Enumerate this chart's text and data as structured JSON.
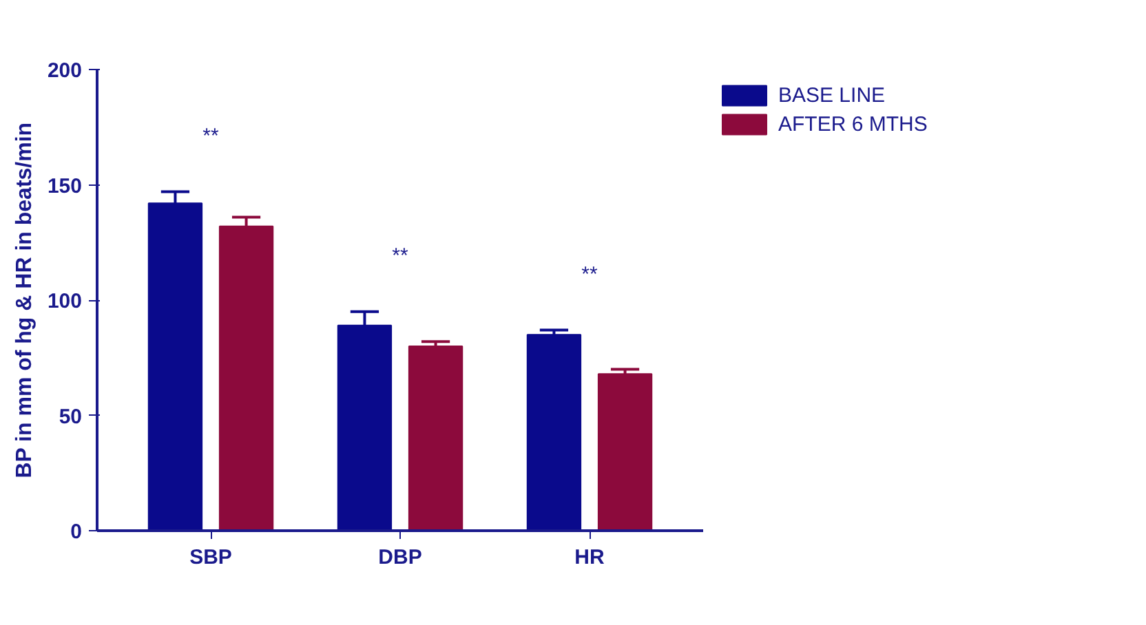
{
  "chart_data": {
    "type": "bar",
    "ylabel": "BP in mm of hg & HR in beats/min",
    "categories": [
      "SBP",
      "DBP",
      "HR"
    ],
    "series": [
      {
        "name": "BASE LINE",
        "color": "#0a0a8c",
        "values": [
          142,
          89,
          85
        ],
        "errors": [
          [
            142,
            147
          ],
          [
            89,
            95
          ],
          [
            85,
            87
          ]
        ]
      },
      {
        "name": "AFTER 6 MTHS",
        "color": "#8c0a3c",
        "values": [
          132,
          80,
          68
        ],
        "errors": [
          [
            132,
            136
          ],
          [
            80,
            82
          ],
          [
            68,
            70
          ]
        ]
      }
    ],
    "ylim": [
      0,
      200
    ],
    "yticks": [
      0,
      50,
      100,
      150,
      200
    ],
    "grid": false,
    "legend": "top right",
    "annotations": [
      "**",
      "**",
      "**"
    ]
  }
}
